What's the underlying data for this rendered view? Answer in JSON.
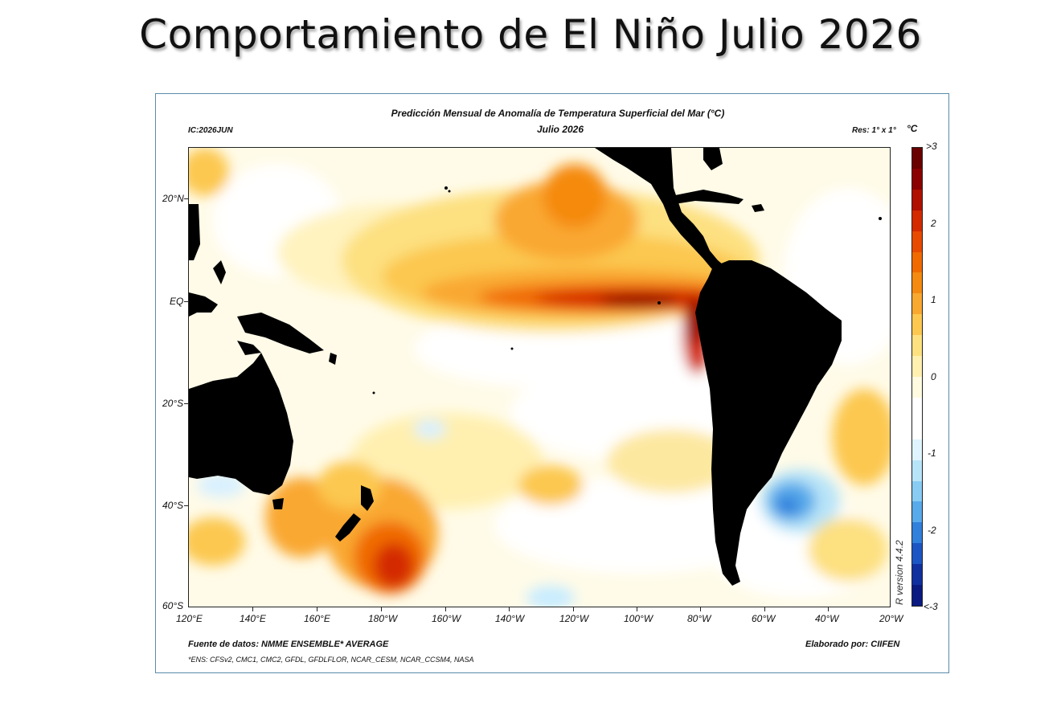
{
  "slide": {
    "title": "Comportamiento de El Niño Julio 2026"
  },
  "map": {
    "title": "Predicción Mensual de Anomalía de Temperatura Superficial del Mar (°C)",
    "subtitle": "Julio 2026",
    "ic_label": "IC:2026JUN",
    "resolution": "Res: 1° x 1°",
    "source": "Fuente de datos: NMME ENSEMBLE* AVERAGE",
    "ensemble_note": "*ENS: CFSv2, CMC1, CMC2, GFDL, GFDLFLOR, NCAR_CESM, NCAR_CCSM4, NASA",
    "credit": "Elaborado por: CIIFEN",
    "version": "R version 4.4.2",
    "lat_labels": [
      "20°N",
      "EQ",
      "20°S",
      "40°S",
      "60°S"
    ],
    "lon_labels": [
      "120°E",
      "140°E",
      "160°E",
      "180°W",
      "160°W",
      "140°W",
      "120°W",
      "100°W",
      "80°W",
      "60°W",
      "40°W",
      "20°W"
    ],
    "colorbar": {
      "unit": "°C",
      "labels": [
        ">3",
        "2",
        "1",
        "0",
        "-1",
        "-2",
        "<-3"
      ],
      "colors": [
        "#6a0000",
        "#8b0000",
        "#b01000",
        "#d42a00",
        "#e84a00",
        "#f06a00",
        "#f58a10",
        "#f9a830",
        "#fcc850",
        "#fde080",
        "#fff0b0",
        "#fffbe0",
        "#ffffff",
        "#ffffff",
        "#e0f4ff",
        "#b8e4f8",
        "#88ccf4",
        "#58aaea",
        "#3080dc",
        "#1c56c4",
        "#1030a0",
        "#0a1a80"
      ]
    },
    "colors": {
      "land": "#000000",
      "ocean_base": "#fffbe8",
      "frame": "#5a8ca8"
    }
  }
}
